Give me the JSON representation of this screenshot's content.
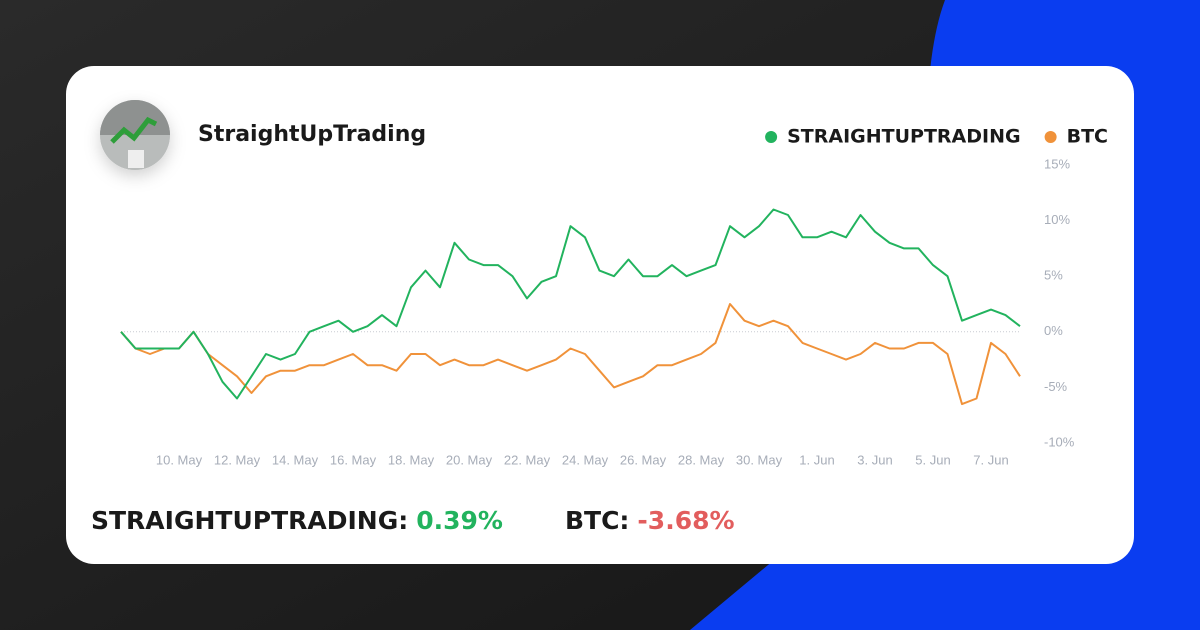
{
  "header": {
    "name": "StraightUpTrading"
  },
  "summary": [
    {
      "name": "STRAIGHTUPTRADING:",
      "label": "0.39%",
      "color": "#22b35e"
    },
    {
      "name": "BTC:",
      "label": "-3.68%",
      "color": "#e25d5d"
    }
  ],
  "chart_data": {
    "type": "line",
    "categories": [
      null,
      null,
      null,
      null,
      "10. May",
      null,
      null,
      null,
      "12. May",
      null,
      null,
      null,
      "14. May",
      null,
      null,
      null,
      "16. May",
      null,
      null,
      null,
      "18. May",
      null,
      null,
      null,
      "20. May",
      null,
      null,
      null,
      "22. May",
      null,
      null,
      null,
      "24. May",
      null,
      null,
      null,
      "26. May",
      null,
      null,
      null,
      "28. May",
      null,
      null,
      null,
      "30. May",
      null,
      null,
      null,
      "1. Jun",
      null,
      null,
      null,
      "3. Jun",
      null,
      null,
      null,
      "5. Jun",
      null,
      null,
      null,
      "7. Jun",
      null,
      null
    ],
    "series": [
      {
        "name": "STRAIGHTUPTRADING",
        "color": "#22b35e",
        "values": [
          0,
          -1.5,
          -1.5,
          -1.5,
          -1.5,
          0,
          -2,
          -4.5,
          -6,
          -4,
          -2,
          -2.5,
          -2,
          0,
          0.5,
          1,
          0,
          0.5,
          1.5,
          0.5,
          4,
          5.5,
          4,
          8,
          6.5,
          6,
          6,
          5,
          3,
          4.5,
          5,
          9.5,
          8.5,
          5.5,
          5,
          6.5,
          5,
          5,
          6,
          5,
          5.5,
          6,
          9.5,
          8.5,
          9.5,
          11,
          10.5,
          8.5,
          8.5,
          9,
          8.5,
          10.5,
          9,
          8,
          7.5,
          7.5,
          6,
          5,
          1,
          1.5,
          2,
          1.5,
          0.5
        ]
      },
      {
        "name": "BTC",
        "color": "#f0923a",
        "values": [
          0,
          -1.5,
          -2,
          -1.5,
          -1.5,
          0,
          -2,
          -3,
          -4,
          -5.5,
          -4,
          -3.5,
          -3.5,
          -3,
          -3,
          -2.5,
          -2,
          -3,
          -3,
          -3.5,
          -2,
          -2,
          -3,
          -2.5,
          -3,
          -3,
          -2.5,
          -3,
          -3.5,
          -3,
          -2.5,
          -1.5,
          -2,
          -3.5,
          -5,
          -4.5,
          -4,
          -3,
          -3,
          -2.5,
          -2,
          -1,
          2.5,
          1,
          0.5,
          1,
          0.5,
          -1,
          -1.5,
          -2,
          -2.5,
          -2,
          -1,
          -1.5,
          -1.5,
          -1,
          -1,
          -2,
          -6.5,
          -6,
          -1,
          -2,
          -4
        ]
      }
    ],
    "ylim": [
      -10,
      15
    ],
    "yticks": [
      {
        "value": -10,
        "label": "-10%"
      },
      {
        "value": -5,
        "label": "-5%"
      },
      {
        "value": 0,
        "label": "0%"
      },
      {
        "value": 5,
        "label": "5%"
      },
      {
        "value": 10,
        "label": "10%"
      },
      {
        "value": 15,
        "label": "15%"
      }
    ],
    "legend": "top-right"
  }
}
